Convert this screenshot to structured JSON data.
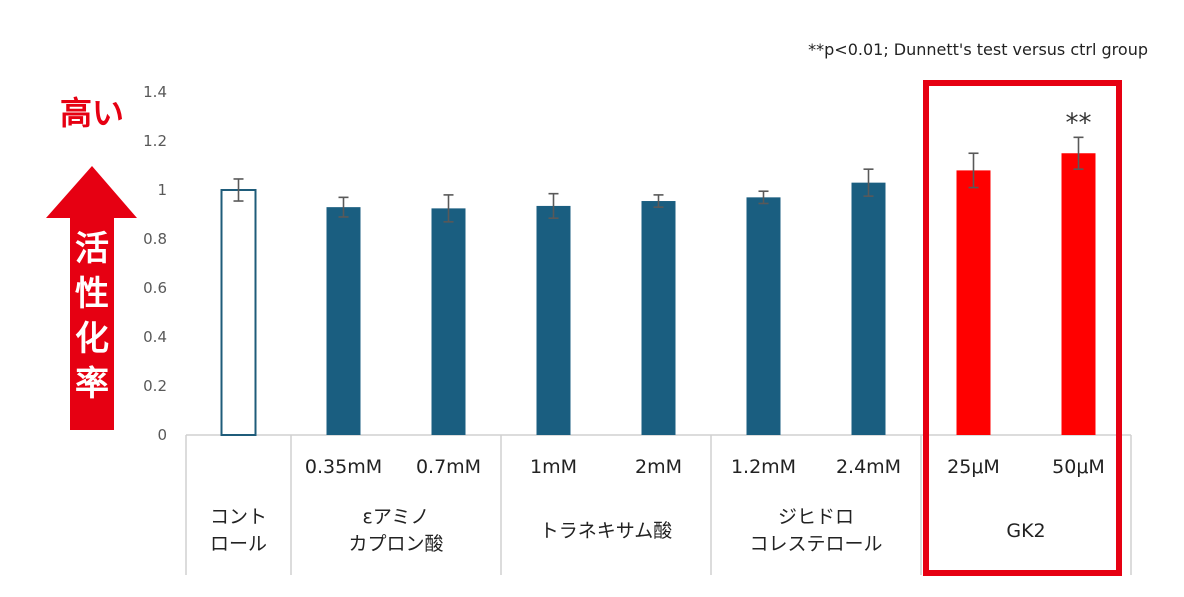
{
  "note": "**p<0.01; Dunnett's test versus ctrl group",
  "side_label": {
    "high": "高い",
    "arrow_text": [
      "活",
      "性",
      "化",
      "率"
    ]
  },
  "colors": {
    "control_fill": "#ffffff",
    "control_stroke": "#1f5c7a",
    "reference": "#1a5e80",
    "gk2": "#ff0000",
    "highlight_box": "#e60012",
    "error_bar": "#595959",
    "axis": "#d0d0d0"
  },
  "chart_data": {
    "type": "bar",
    "title": "",
    "xlabel": "",
    "ylabel": "活性化率",
    "ylim": [
      0,
      1.4
    ],
    "yticks": [
      0,
      0.2,
      0.4,
      0.6,
      0.8,
      1,
      1.2,
      1.4
    ],
    "ytick_labels": [
      "0",
      "0.2",
      "0.4",
      "0.6",
      "0.8",
      "1",
      "1.2",
      "1.4"
    ],
    "grid": false,
    "bars": [
      {
        "dose": "",
        "group": "control",
        "value": 1.0,
        "error": 0.045
      },
      {
        "dose": "0.35mM",
        "group": "aminocaproic",
        "value": 0.93,
        "error": 0.04
      },
      {
        "dose": "0.7mM",
        "group": "aminocaproic",
        "value": 0.925,
        "error": 0.055
      },
      {
        "dose": "1mM",
        "group": "tranexamic",
        "value": 0.935,
        "error": 0.05
      },
      {
        "dose": "2mM",
        "group": "tranexamic",
        "value": 0.955,
        "error": 0.025
      },
      {
        "dose": "1.2mM",
        "group": "dihydrocholesterol",
        "value": 0.97,
        "error": 0.025
      },
      {
        "dose": "2.4mM",
        "group": "dihydrocholesterol",
        "value": 1.03,
        "error": 0.055
      },
      {
        "dose": "25μM",
        "group": "gk2",
        "value": 1.08,
        "error": 0.07
      },
      {
        "dose": "50μM",
        "group": "gk2",
        "value": 1.15,
        "error": 0.065,
        "annotation": "**"
      }
    ],
    "groups": [
      {
        "id": "control",
        "label_lines": [
          "コント",
          "ロール"
        ]
      },
      {
        "id": "aminocaproic",
        "label_lines": [
          "εアミノ",
          "カプロン酸"
        ]
      },
      {
        "id": "tranexamic",
        "label_lines": [
          "トラネキサム酸"
        ]
      },
      {
        "id": "dihydrocholesterol",
        "label_lines": [
          "ジヒドロ",
          "コレステロール"
        ]
      },
      {
        "id": "gk2",
        "label_lines": [
          "GK2"
        ],
        "highlighted": true
      }
    ]
  }
}
